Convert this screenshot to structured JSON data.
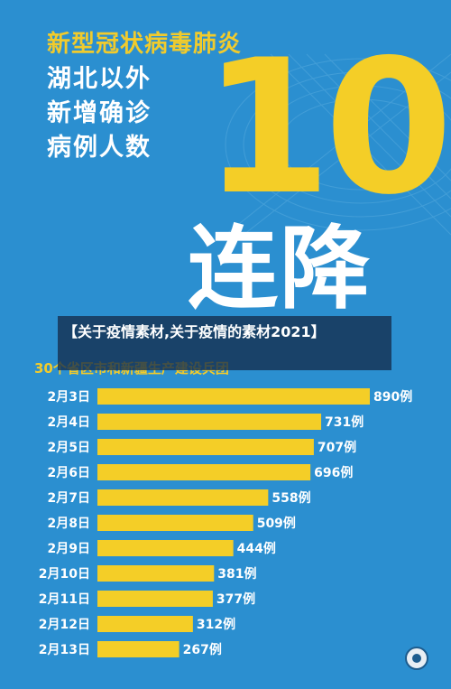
{
  "header": {
    "line1": "新型冠状病毒肺炎",
    "line2": "湖北以外",
    "line3": "新增确诊",
    "line4": "病例人数"
  },
  "hero": {
    "number": "10",
    "word": "连降"
  },
  "banner": {
    "text": "【关于疫情素材,关于疫情的素材2021】"
  },
  "subtitle": "30个省区市和新疆生产建设兵团",
  "colors": {
    "background": "#2b8fd0",
    "bar": "#f4ce27",
    "accent_yellow": "#f1cb2c",
    "text": "#ffffff"
  },
  "icons": {
    "emblem": "emblem-icon"
  },
  "chart_data": {
    "type": "bar",
    "orientation": "horizontal",
    "categories": [
      "2月3日",
      "2月4日",
      "2月5日",
      "2月6日",
      "2月7日",
      "2月8日",
      "2月9日",
      "2月10日",
      "2月11日",
      "2月12日",
      "2月13日"
    ],
    "values": [
      890,
      731,
      707,
      696,
      558,
      509,
      444,
      381,
      377,
      312,
      267
    ],
    "value_labels": [
      "890例",
      "731例",
      "707例",
      "696例",
      "558例",
      "509例",
      "444例",
      "381例",
      "377例",
      "312例",
      "267例"
    ],
    "xlim": [
      0,
      890
    ],
    "grid": false,
    "legend": "none"
  }
}
